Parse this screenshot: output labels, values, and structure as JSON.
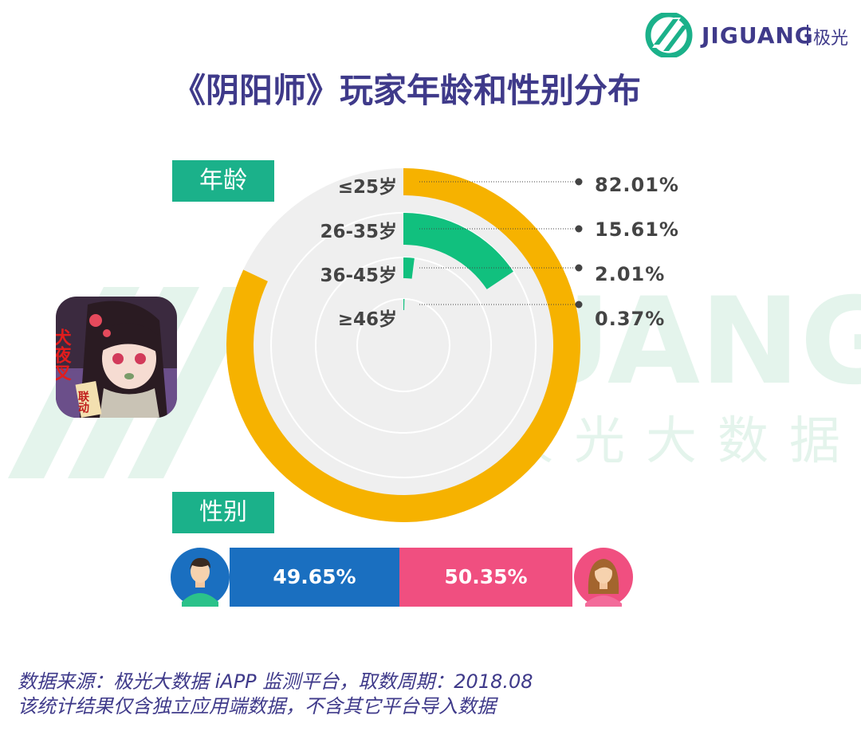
{
  "brand": {
    "name": "JIGUANG",
    "cn": "极光"
  },
  "title": "《阴阳师》玩家年龄和性别分布",
  "watermark": {
    "brand": "JIGUANG",
    "cn": "极光大数据"
  },
  "sections": {
    "age": "年龄",
    "gender": "性别"
  },
  "colors": {
    "title": "#3f3a8a",
    "tag": "#1bb18a",
    "age_outer": "#f6b200",
    "age_second": "#11c07e",
    "track": "#efefef",
    "male": "#1a6fc0",
    "female": "#f04f80"
  },
  "chart_data": [
    {
      "type": "radial-bar",
      "categories": [
        "≤25岁",
        "26-35岁",
        "36-45岁",
        "≥46岁"
      ],
      "values": [
        82.01,
        15.61,
        2.01,
        0.37
      ],
      "value_labels": [
        "82.01%",
        "15.61%",
        "2.01%",
        "0.37%"
      ],
      "unit": "%",
      "max": 100
    },
    {
      "type": "bar",
      "stacked": true,
      "categories": [
        "男",
        "女"
      ],
      "values": [
        49.65,
        50.35
      ],
      "value_labels": [
        "49.65%",
        "50.35%"
      ],
      "unit": "%"
    }
  ],
  "footer": {
    "source": "数据来源：极光大数据 iAPP 监测平台，取数周期：2018.08",
    "note": "该统计结果仅含独立应用端数据，不含其它平台导入数据"
  },
  "app_icon": {
    "text_main": "犬夜叉",
    "text_sub": "联动"
  }
}
